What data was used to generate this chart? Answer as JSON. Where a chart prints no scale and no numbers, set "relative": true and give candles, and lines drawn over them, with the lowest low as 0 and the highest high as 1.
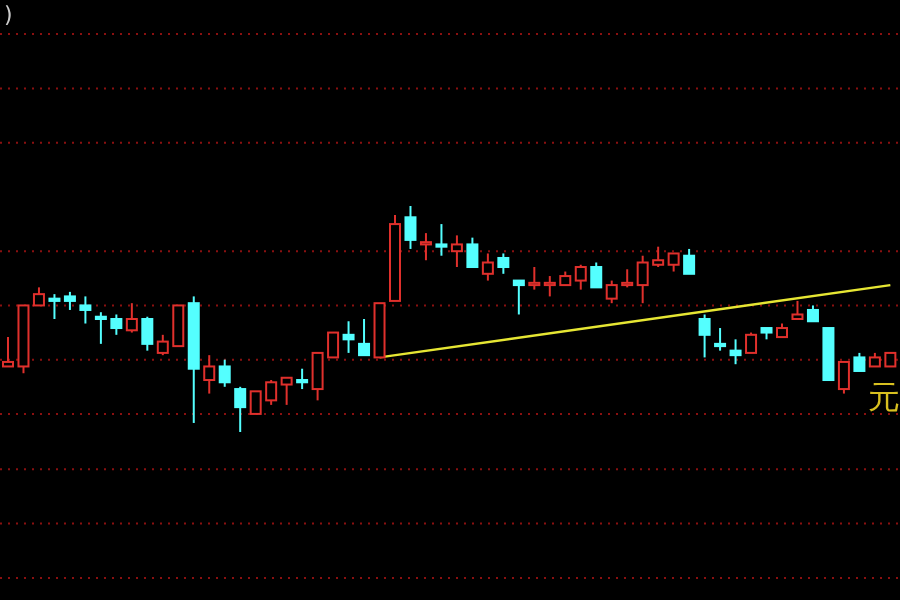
{
  "chart_data": {
    "type": "candlestick",
    "relative": true,
    "categories": [
      null,
      null,
      null,
      null,
      null,
      null,
      null,
      null,
      null,
      null,
      null,
      null,
      null,
      null,
      null,
      null,
      null,
      null,
      null,
      null,
      null,
      null,
      null,
      null,
      null,
      null,
      null,
      null,
      null,
      null,
      null,
      null,
      null,
      null,
      null,
      null,
      null,
      null,
      null,
      null,
      null,
      null,
      null,
      null,
      null,
      null,
      null,
      null,
      null,
      null,
      null,
      null,
      null,
      null,
      null,
      null,
      null,
      null
    ],
    "ohlc": [
      [
        0.29,
        0.42,
        0.29,
        0.31
      ],
      [
        0.29,
        0.56,
        0.26,
        0.56
      ],
      [
        0.56,
        0.64,
        0.56,
        0.61
      ],
      [
        0.59,
        0.61,
        0.5,
        0.58
      ],
      [
        0.6,
        0.62,
        0.54,
        0.58
      ],
      [
        0.56,
        0.6,
        0.48,
        0.54
      ],
      [
        0.51,
        0.53,
        0.39,
        0.5
      ],
      [
        0.5,
        0.52,
        0.43,
        0.46
      ],
      [
        0.45,
        0.57,
        0.44,
        0.5
      ],
      [
        0.5,
        0.51,
        0.36,
        0.39
      ],
      [
        0.35,
        0.43,
        0.34,
        0.4
      ],
      [
        0.38,
        0.56,
        0.38,
        0.56
      ],
      [
        0.57,
        0.6,
        0.04,
        0.28
      ],
      [
        0.23,
        0.34,
        0.17,
        0.29
      ],
      [
        0.29,
        0.32,
        0.2,
        0.22
      ],
      [
        0.19,
        0.2,
        0,
        0.11
      ],
      [
        0.08,
        0.18,
        0.08,
        0.18
      ],
      [
        0.14,
        0.23,
        0.12,
        0.22
      ],
      [
        0.21,
        0.24,
        0.12,
        0.24
      ],
      [
        0.23,
        0.28,
        0.19,
        0.22
      ],
      [
        0.19,
        0.35,
        0.14,
        0.35
      ],
      [
        0.33,
        0.44,
        0.33,
        0.44
      ],
      [
        0.43,
        0.49,
        0.35,
        0.41
      ],
      [
        0.39,
        0.5,
        0.34,
        0.34
      ],
      [
        0.33,
        0.57,
        0.33,
        0.57
      ],
      [
        0.58,
        0.96,
        0.58,
        0.92
      ],
      [
        0.95,
        1,
        0.81,
        0.85
      ],
      [
        0.83,
        0.88,
        0.76,
        0.84
      ],
      [
        0.83,
        0.92,
        0.78,
        0.82
      ],
      [
        0.8,
        0.87,
        0.73,
        0.83
      ],
      [
        0.83,
        0.86,
        0.73,
        0.73
      ],
      [
        0.7,
        0.79,
        0.67,
        0.75
      ],
      [
        0.77,
        0.79,
        0.7,
        0.73
      ],
      [
        0.67,
        0.67,
        0.52,
        0.65
      ],
      [
        0.65,
        0.73,
        0.63,
        0.66
      ],
      [
        0.65,
        0.69,
        0.6,
        0.66
      ],
      [
        0.65,
        0.71,
        0.65,
        0.69
      ],
      [
        0.67,
        0.74,
        0.63,
        0.73
      ],
      [
        0.73,
        0.75,
        0.64,
        0.64
      ],
      [
        0.59,
        0.67,
        0.57,
        0.65
      ],
      [
        0.65,
        0.72,
        0.64,
        0.66
      ],
      [
        0.65,
        0.78,
        0.57,
        0.75
      ],
      [
        0.74,
        0.82,
        0.73,
        0.76
      ],
      [
        0.74,
        0.79,
        0.71,
        0.79
      ],
      [
        0.78,
        0.81,
        0.7,
        0.7
      ],
      [
        0.5,
        0.52,
        0.33,
        0.43
      ],
      [
        0.39,
        0.46,
        0.36,
        0.38
      ],
      [
        0.36,
        0.41,
        0.3,
        0.34
      ],
      [
        0.35,
        0.44,
        0.35,
        0.43
      ],
      [
        0.46,
        0.46,
        0.41,
        0.44
      ],
      [
        0.42,
        0.48,
        0.42,
        0.46
      ],
      [
        0.5,
        0.58,
        0.5,
        0.52
      ],
      [
        0.54,
        0.56,
        0.49,
        0.49
      ],
      [
        0.46,
        0.46,
        0.23,
        0.23
      ],
      [
        0.19,
        0.31,
        0.17,
        0.31
      ],
      [
        0.33,
        0.35,
        0.27,
        0.27
      ],
      [
        0.29,
        0.35,
        0.29,
        0.33
      ],
      [
        0.29,
        0.35,
        0.29,
        0.35
      ]
    ],
    "colors": [
      "#e0302c",
      "#e0302c",
      "#e0302c",
      "#54ffff",
      "#54ffff",
      "#54ffff",
      "#54ffff",
      "#54ffff",
      "#e0302c",
      "#54ffff",
      "#e0302c",
      "#e0302c",
      "#54ffff",
      "#e0302c",
      "#54ffff",
      "#54ffff",
      "#e0302c",
      "#e0302c",
      "#e0302c",
      "#54ffff",
      "#e0302c",
      "#e0302c",
      "#54ffff",
      "#54ffff",
      "#e0302c",
      "#e0302c",
      "#54ffff",
      "#e0302c",
      "#54ffff",
      "#e0302c",
      "#54ffff",
      "#e0302c",
      "#54ffff",
      "#54ffff",
      "#e0302c",
      "#e0302c",
      "#e0302c",
      "#e0302c",
      "#54ffff",
      "#e0302c",
      "#e0302c",
      "#e0302c",
      "#e0302c",
      "#e0302c",
      "#54ffff",
      "#54ffff",
      "#54ffff",
      "#54ffff",
      "#e0302c",
      "#54ffff",
      "#e0302c",
      "#e0302c",
      "#54ffff",
      "#54ffff",
      "#e0302c",
      "#54ffff",
      "#e0302c",
      "#e0302c"
    ],
    "series": [
      {
        "type": "line",
        "color": "#e6e633",
        "values": [
          null,
          null,
          null,
          null,
          null,
          null,
          null,
          null,
          null,
          null,
          null,
          null,
          null,
          null,
          null,
          null,
          null,
          null,
          null,
          null,
          null,
          null,
          null,
          null,
          0.33,
          null,
          null,
          null,
          null,
          null,
          null,
          null,
          null,
          null,
          null,
          null,
          null,
          null,
          null,
          null,
          null,
          null,
          null,
          null,
          null,
          null,
          null,
          null,
          null,
          null,
          null,
          null,
          null,
          null,
          null,
          null,
          null,
          0.65
        ]
      }
    ],
    "ref_lines": [
      {
        "axis": "y",
        "value": 0.8,
        "color": "#8a1010",
        "line_style": "dotted"
      },
      {
        "axis": "y",
        "value": 0.56,
        "color": "#8a1010",
        "line_style": "dotted"
      },
      {
        "axis": "y",
        "value": 0.32,
        "color": "#8a1010",
        "line_style": "dotted"
      },
      {
        "axis": "y",
        "value": 0.08,
        "color": "#8a1010",
        "line_style": "dotted"
      }
    ],
    "annotations": [
      ")",
      "元"
    ]
  }
}
